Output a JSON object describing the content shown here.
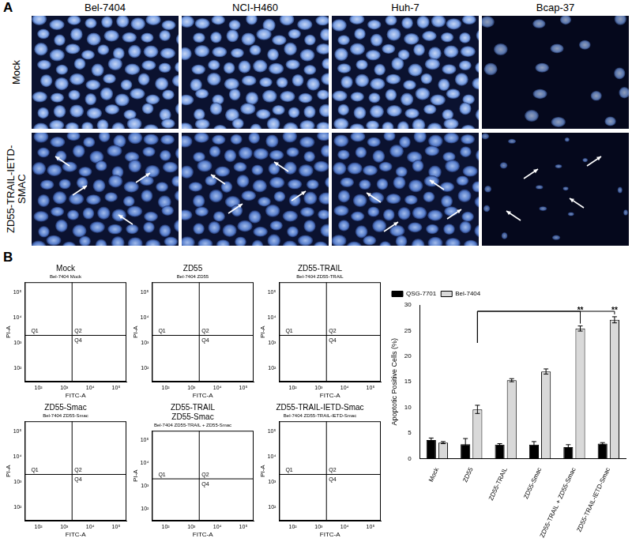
{
  "panel_a": {
    "label": "A",
    "columns": [
      "Bel-7404",
      "NCI-H460",
      "Huh-7",
      "Bcap-37"
    ],
    "rows": [
      "Mock",
      "ZD55-TRAIL-IETD-SMAC"
    ]
  },
  "panel_b": {
    "label": "B"
  },
  "chart_data": [
    {
      "type": "scatter",
      "title": "Mock",
      "subtitle": "Bel-7404 Mock",
      "x_label": "FITC-A",
      "y_label": "PI-A",
      "log": true,
      "grid": false,
      "xlim": [
        30,
        250000
      ],
      "xticks": [
        {
          "value": 100,
          "label": "10²"
        },
        {
          "value": 1000,
          "label": "10³"
        },
        {
          "value": 10000,
          "label": "10⁴"
        },
        {
          "value": 100000,
          "label": "10⁵"
        }
      ],
      "ylim": [
        30,
        250000
      ],
      "yticks": [
        {
          "value": 100,
          "label": "10²"
        },
        {
          "value": 1000,
          "label": "10³"
        },
        {
          "value": 10000,
          "label": "10⁴"
        },
        {
          "value": 100000,
          "label": "10⁵"
        }
      ],
      "gate": {
        "x": 2000,
        "y": 2000
      },
      "quadrants": {
        "upper_left": "Q1",
        "upper_right": "Q2",
        "lower_right": "Q4"
      }
    },
    {
      "type": "scatter",
      "title": "ZD55",
      "subtitle": "Bel-7404 ZD55",
      "x_label": "FITC-A",
      "y_label": "PI-A",
      "log": true,
      "grid": false,
      "xlim": [
        30,
        250000
      ],
      "xticks": [
        {
          "value": 100,
          "label": "10²"
        },
        {
          "value": 1000,
          "label": "10³"
        },
        {
          "value": 10000,
          "label": "10⁴"
        },
        {
          "value": 100000,
          "label": "10⁵"
        }
      ],
      "ylim": [
        30,
        250000
      ],
      "yticks": [
        {
          "value": 100,
          "label": "10²"
        },
        {
          "value": 1000,
          "label": "10³"
        },
        {
          "value": 10000,
          "label": "10⁴"
        },
        {
          "value": 100000,
          "label": "10⁵"
        }
      ],
      "gate": {
        "x": 2000,
        "y": 2000
      },
      "quadrants": {
        "upper_left": "Q1",
        "upper_right": "Q2",
        "lower_right": "Q4"
      }
    },
    {
      "type": "scatter",
      "title": "ZD55-TRAIL",
      "subtitle": "Bel-7404 ZD55-TRAIL",
      "x_label": "FITC-A",
      "y_label": "PI-A",
      "log": true,
      "grid": false,
      "xlim": [
        30,
        250000
      ],
      "xticks": [
        {
          "value": 100,
          "label": "10²"
        },
        {
          "value": 1000,
          "label": "10³"
        },
        {
          "value": 10000,
          "label": "10⁴"
        },
        {
          "value": 100000,
          "label": "10⁵"
        }
      ],
      "ylim": [
        30,
        250000
      ],
      "yticks": [
        {
          "value": 100,
          "label": "10²"
        },
        {
          "value": 1000,
          "label": "10³"
        },
        {
          "value": 10000,
          "label": "10⁴"
        },
        {
          "value": 100000,
          "label": "10⁵"
        }
      ],
      "gate": {
        "x": 2000,
        "y": 2000
      },
      "quadrants": {
        "upper_left": "Q1",
        "upper_right": "Q2",
        "lower_right": "Q4"
      }
    },
    {
      "type": "scatter",
      "title": "ZD55-Smac",
      "subtitle": "Bel-7404 ZD55-Smac",
      "x_label": "FITC-A",
      "y_label": "PI-A",
      "log": true,
      "grid": false,
      "xlim": [
        30,
        250000
      ],
      "xticks": [
        {
          "value": 100,
          "label": "10²"
        },
        {
          "value": 1000,
          "label": "10³"
        },
        {
          "value": 10000,
          "label": "10⁴"
        },
        {
          "value": 100000,
          "label": "10⁵"
        }
      ],
      "ylim": [
        30,
        250000
      ],
      "yticks": [
        {
          "value": 100,
          "label": "10²"
        },
        {
          "value": 1000,
          "label": "10³"
        },
        {
          "value": 10000,
          "label": "10⁴"
        },
        {
          "value": 100000,
          "label": "10⁵"
        }
      ],
      "gate": {
        "x": 2000,
        "y": 2000
      },
      "quadrants": {
        "upper_left": "Q1",
        "upper_right": "Q2",
        "lower_right": "Q4"
      }
    },
    {
      "type": "scatter",
      "title": [
        "ZD55-TRAIL",
        "ZD55-Smac"
      ],
      "subtitle": "Bel-7404 ZD55-TRAIL + ZD55-Smac",
      "x_label": "FITC-A",
      "y_label": "PI-A",
      "log": true,
      "grid": false,
      "xlim": [
        30,
        250000
      ],
      "xticks": [
        {
          "value": 100,
          "label": "10²"
        },
        {
          "value": 1000,
          "label": "10³"
        },
        {
          "value": 10000,
          "label": "10⁴"
        },
        {
          "value": 100000,
          "label": "10⁵"
        }
      ],
      "ylim": [
        30,
        250000
      ],
      "yticks": [
        {
          "value": 100,
          "label": "10²"
        },
        {
          "value": 1000,
          "label": "10³"
        },
        {
          "value": 10000,
          "label": "10⁴"
        },
        {
          "value": 100000,
          "label": "10⁵"
        }
      ],
      "gate": {
        "x": 2000,
        "y": 2000
      },
      "quadrants": {
        "upper_left": "Q1",
        "upper_right": "Q2",
        "lower_right": "Q4"
      }
    },
    {
      "type": "scatter",
      "title": "ZD55-TRAIL-IETD-Smac",
      "subtitle": "Bel-7404 ZD55-TRAIL-IETD-Smac",
      "x_label": "FITC-A",
      "y_label": "PI-A",
      "log": true,
      "grid": false,
      "xlim": [
        30,
        250000
      ],
      "xticks": [
        {
          "value": 100,
          "label": "10²"
        },
        {
          "value": 1000,
          "label": "10³"
        },
        {
          "value": 10000,
          "label": "10⁴"
        },
        {
          "value": 100000,
          "label": "10⁵"
        }
      ],
      "ylim": [
        30,
        250000
      ],
      "yticks": [
        {
          "value": 100,
          "label": "10²"
        },
        {
          "value": 1000,
          "label": "10³"
        },
        {
          "value": 10000,
          "label": "10⁴"
        },
        {
          "value": 100000,
          "label": "10⁵"
        }
      ],
      "gate": {
        "x": 2000,
        "y": 2000
      },
      "quadrants": {
        "upper_left": "Q1",
        "upper_right": "Q2",
        "lower_right": "Q4"
      }
    },
    {
      "type": "bar",
      "y_label": "Apoptotic Positive Cells (%)",
      "grid": false,
      "legend": "upper left",
      "categories": [
        "Mock",
        "ZD55",
        "ZD55-TRAIL",
        "ZD55-Smac",
        "ZD55-TRAIL + ZD55-Smac",
        "ZD55-TRAIL-IETD-Smac"
      ],
      "series": [
        {
          "name": "QSG-7701",
          "color": "#000000",
          "values": [
            3.6,
            2.8,
            2.7,
            2.7,
            2.2,
            2.9
          ],
          "errors": [
            0.4,
            1.1,
            0.2,
            0.6,
            0.5,
            0.2
          ]
        },
        {
          "name": "Bel-7404",
          "color": "#d9d9d9",
          "values": [
            3.1,
            9.6,
            15.3,
            17.0,
            25.4,
            27.1
          ],
          "errors": [
            0.2,
            0.8,
            0.3,
            0.5,
            0.5,
            0.6
          ]
        }
      ],
      "ylim": [
        0,
        30
      ],
      "yticks": [
        0,
        5,
        10,
        15,
        20,
        25,
        30
      ],
      "annotations": [
        {
          "text": "**",
          "series": "Bel-7404",
          "from": "ZD55",
          "to": "ZD55-TRAIL + ZD55-Smac"
        },
        {
          "text": "**",
          "series": "Bel-7404",
          "from": "ZD55",
          "to": "ZD55-TRAIL-IETD-Smac"
        }
      ]
    }
  ]
}
